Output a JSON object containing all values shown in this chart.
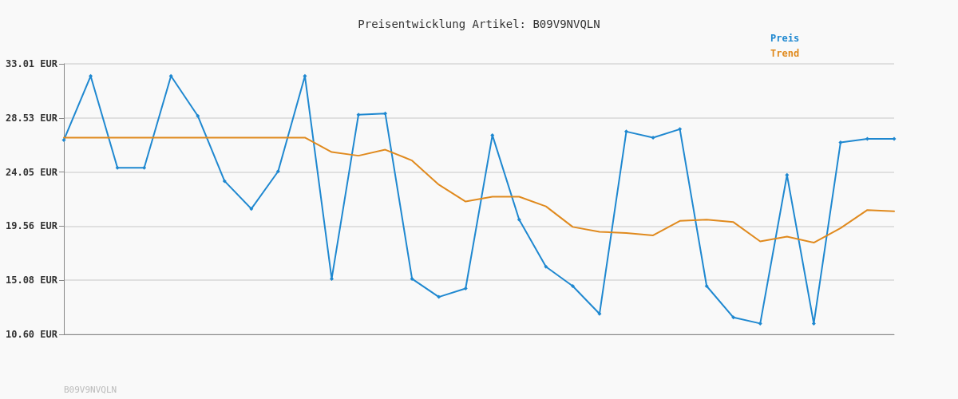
{
  "chart_data": {
    "type": "line",
    "title": "Preisentwicklung Artikel: B09V9NVQLN",
    "categories": [
      null,
      null,
      null,
      null,
      null,
      null,
      null,
      null,
      null,
      null,
      null,
      null,
      null,
      null,
      null,
      null,
      null,
      null,
      null,
      null,
      null,
      null,
      null,
      null,
      null,
      null,
      null,
      null,
      null,
      null,
      null,
      null
    ],
    "series": [
      {
        "name": "Preis",
        "color": "#1f88d0",
        "marker": "diamond",
        "values": [
          26.7,
          32.0,
          24.4,
          24.4,
          32.0,
          28.7,
          23.3,
          21.0,
          24.1,
          32.0,
          15.2,
          28.8,
          28.9,
          15.2,
          13.7,
          14.4,
          27.1,
          20.1,
          16.2,
          14.6,
          12.3,
          27.4,
          26.9,
          27.6,
          14.6,
          12.0,
          11.5,
          23.8,
          11.5,
          26.5,
          26.8,
          26.8
        ]
      },
      {
        "name": "Trend",
        "color": "#e08a1e",
        "marker": "none",
        "values": [
          26.9,
          26.9,
          26.9,
          26.9,
          26.9,
          26.9,
          26.9,
          26.9,
          26.9,
          26.9,
          25.7,
          25.4,
          25.9,
          25.0,
          23.0,
          21.6,
          22.0,
          22.0,
          21.2,
          19.5,
          19.1,
          19.0,
          18.8,
          20.0,
          20.1,
          19.9,
          18.3,
          18.7,
          18.2,
          19.4,
          20.9,
          20.8
        ]
      }
    ],
    "ylim": [
      10.6,
      33.01
    ],
    "yticks": [
      {
        "value": 10.6,
        "label": "10.60 EUR"
      },
      {
        "value": 15.08,
        "label": "15.08 EUR"
      },
      {
        "value": 19.56,
        "label": "19.56 EUR"
      },
      {
        "value": 24.05,
        "label": "24.05 EUR"
      },
      {
        "value": 28.53,
        "label": "28.53 EUR"
      },
      {
        "value": 33.01,
        "label": "33.01 EUR"
      }
    ],
    "grid": "y",
    "legend": "top right",
    "line_style": "solid",
    "annotations": [
      "B09V9NVQLN"
    ]
  }
}
